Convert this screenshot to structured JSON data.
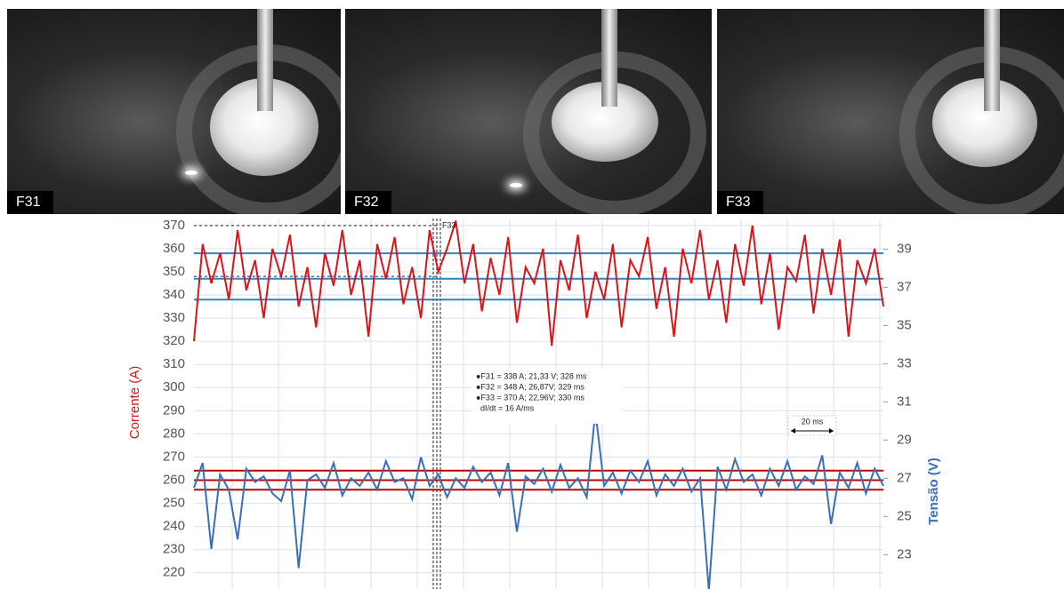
{
  "photos": [
    {
      "label": "F31"
    },
    {
      "label": "F32"
    },
    {
      "label": "F33"
    }
  ],
  "chart_data": {
    "type": "line",
    "ylabel": "Corrente (A)",
    "y2label": "Tensão (V)",
    "ylim": [
      213,
      373
    ],
    "yticks": [
      220,
      230,
      240,
      250,
      260,
      270,
      280,
      290,
      300,
      310,
      320,
      330,
      340,
      350,
      360,
      370
    ],
    "y2lim": [
      21.2,
      40.6
    ],
    "y2ticks": [
      23,
      25,
      27,
      29,
      31,
      33,
      35,
      37,
      39
    ],
    "grid": true,
    "series": [
      {
        "name": "Corrente (A)",
        "color": "#d9141b",
        "values": [
          320,
          362,
          345,
          358,
          338,
          368,
          342,
          355,
          330,
          360,
          348,
          366,
          335,
          352,
          326,
          358,
          344,
          368,
          340,
          355,
          322,
          362,
          347,
          365,
          336,
          352,
          330,
          368,
          350,
          360,
          372,
          345,
          362,
          333,
          356,
          340,
          365,
          328,
          352,
          345,
          360,
          318,
          355,
          342,
          366,
          330,
          350,
          338,
          362,
          326,
          355,
          348,
          365,
          334,
          352,
          322,
          360,
          345,
          368,
          338,
          355,
          328,
          362,
          344,
          370,
          336,
          358,
          325,
          352,
          346,
          366,
          332,
          360,
          340,
          364,
          322,
          355,
          345,
          360,
          335
        ]
      },
      {
        "name": "Tensão (V)",
        "color": "#3a6fb7",
        "axis": "y2",
        "values": [
          26.5,
          27.8,
          23.3,
          27.2,
          26.4,
          23.8,
          27.5,
          26.8,
          27.1,
          26.2,
          25.8,
          27.4,
          22.3,
          26.9,
          27.2,
          26.5,
          27.8,
          26.1,
          27.0,
          26.6,
          27.3,
          26.4,
          27.9,
          26.8,
          27.0,
          25.9,
          28.1,
          26.6,
          27.2,
          26.0,
          27.0,
          26.5,
          27.6,
          26.8,
          27.3,
          26.1,
          27.8,
          24.2,
          27.1,
          26.7,
          27.5,
          26.3,
          27.7,
          26.5,
          27.0,
          26.0,
          30.5,
          26.6,
          27.3,
          26.2,
          27.4,
          26.8,
          27.9,
          26.1,
          27.2,
          26.6,
          27.5,
          26.3,
          27.0,
          21.1,
          27.6,
          26.4,
          28.0,
          26.8,
          27.2,
          26.1,
          27.5,
          26.6,
          27.9,
          26.4,
          27.1,
          26.7,
          28.2,
          24.6,
          27.3,
          26.5,
          27.8,
          26.2,
          27.5,
          26.6
        ]
      }
    ],
    "reference_lines": [
      {
        "axis": "y",
        "color": "#2e86c1",
        "values": [
          358,
          347,
          338
        ]
      },
      {
        "axis": "y2",
        "color": "#c00000",
        "values": [
          27.4,
          26.9,
          26.4
        ]
      }
    ],
    "marker_label": "F33",
    "annotation": [
      "●F31 = 338 A; 21,33 V; 328 ms",
      "●F32 = 348 A; 26,87V; 329 ms",
      "●F33 = 370 A; 22,96V; 330 ms",
      "dI/dt = 16 A/ms"
    ],
    "scale_label": "20 ms"
  }
}
